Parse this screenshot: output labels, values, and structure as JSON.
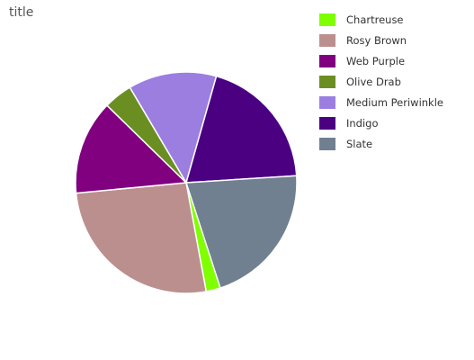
{
  "chart_data": {
    "type": "pie",
    "title": "title",
    "legend_position": "right",
    "slices": [
      {
        "label": "Chartreuse",
        "value": 2.1,
        "color": "#7fff00"
      },
      {
        "label": "Rosy Brown",
        "value": 26.4,
        "color": "#bc8f8f"
      },
      {
        "label": "Web Purple",
        "value": 13.8,
        "color": "#800080"
      },
      {
        "label": "Olive Drab",
        "value": 4.2,
        "color": "#6b8e23"
      },
      {
        "label": "Medium Periwinkle",
        "value": 12.9,
        "color": "#9c7ee0"
      },
      {
        "label": "Indigo",
        "value": 19.6,
        "color": "#4b0082"
      },
      {
        "label": "Slate",
        "value": 21.0,
        "color": "#708090"
      }
    ]
  }
}
